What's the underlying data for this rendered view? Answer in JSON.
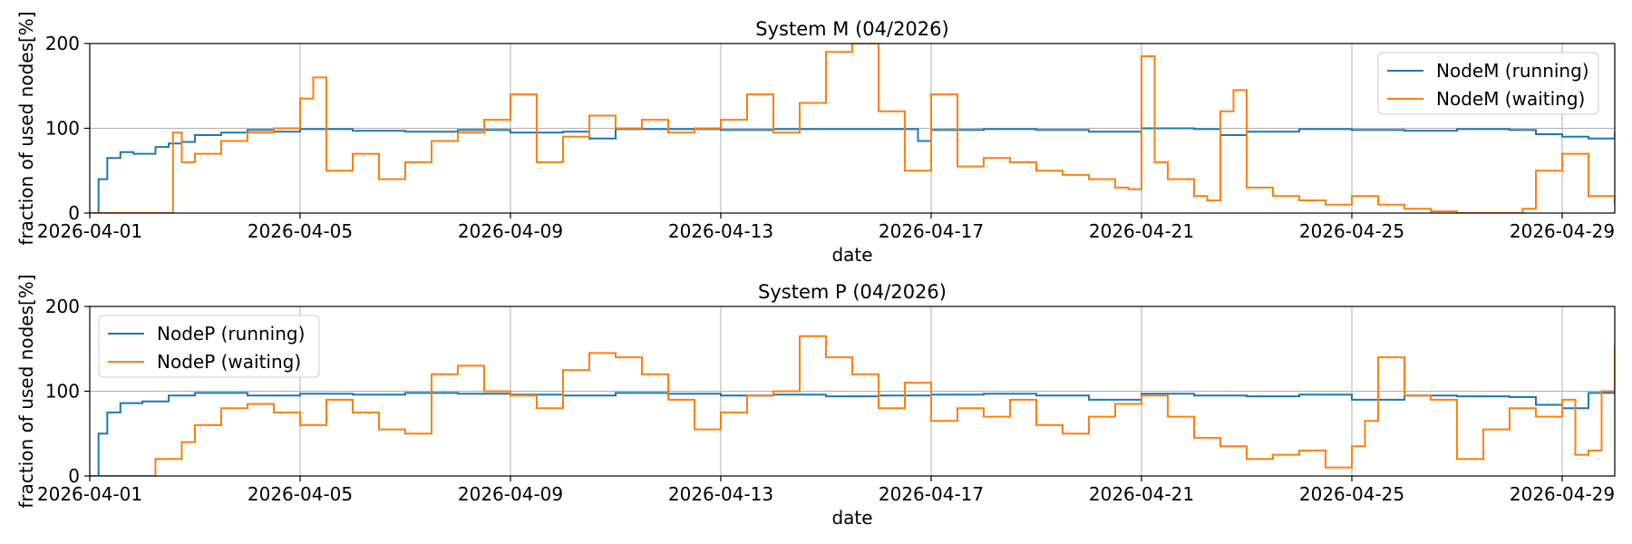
{
  "colors": {
    "running": "#1f77b4",
    "waiting": "#ff7f0e"
  },
  "chart_data": [
    {
      "type": "line",
      "title": "System M (04/2026)",
      "xlabel": "date",
      "ylabel": "fraction of used nodes[%]",
      "ylim": [
        0,
        200
      ],
      "yticks": [
        "0",
        "100",
        "200"
      ],
      "xticks": [
        "2026-04-01",
        "2026-04-05",
        "2026-04-09",
        "2026-04-13",
        "2026-04-17",
        "2026-04-21",
        "2026-04-25",
        "2026-04-29"
      ],
      "grid": true,
      "legend_position": "top-right",
      "series": [
        {
          "name": "NodeM (running)",
          "color": "#1f77b4",
          "x": [
            "2026-04-01 00:00",
            "2026-04-01 04:00",
            "2026-04-01 08:00",
            "2026-04-01 14:00",
            "2026-04-01 20:00",
            "2026-04-02 06:00",
            "2026-04-02 12:00",
            "2026-04-02 18:00",
            "2026-04-03 00:00",
            "2026-04-03 12:00",
            "2026-04-04 00:00",
            "2026-04-04 12:00",
            "2026-04-05 00:00",
            "2026-04-06 00:00",
            "2026-04-07 00:00",
            "2026-04-08 00:00",
            "2026-04-09 00:00",
            "2026-04-10 00:00",
            "2026-04-10 12:00",
            "2026-04-11 00:00",
            "2026-04-12 00:00",
            "2026-04-13 00:00",
            "2026-04-14 00:00",
            "2026-04-15 00:00",
            "2026-04-16 00:00",
            "2026-04-16 18:00",
            "2026-04-17 00:00",
            "2026-04-18 00:00",
            "2026-04-19 00:00",
            "2026-04-20 00:00",
            "2026-04-21 00:00",
            "2026-04-22 00:00",
            "2026-04-22 12:00",
            "2026-04-23 00:00",
            "2026-04-24 00:00",
            "2026-04-25 00:00",
            "2026-04-26 00:00",
            "2026-04-27 00:00",
            "2026-04-28 00:00",
            "2026-04-28 12:00",
            "2026-04-29 00:00",
            "2026-04-29 12:00",
            "2026-04-30 00:00"
          ],
          "values": [
            0,
            40,
            65,
            72,
            70,
            78,
            82,
            84,
            92,
            95,
            98,
            96,
            99,
            97,
            96,
            98,
            95,
            96,
            88,
            99,
            99,
            98,
            99,
            99,
            99,
            85,
            98,
            99,
            98,
            96,
            100,
            99,
            92,
            96,
            99,
            98,
            97,
            99,
            98,
            93,
            90,
            88,
            95
          ]
        },
        {
          "name": "NodeM (waiting)",
          "color": "#ff7f0e",
          "x": [
            "2026-04-01 00:00",
            "2026-04-02 12:00",
            "2026-04-02 14:00",
            "2026-04-02 18:00",
            "2026-04-03 00:00",
            "2026-04-03 12:00",
            "2026-04-04 00:00",
            "2026-04-04 12:00",
            "2026-04-05 00:00",
            "2026-04-05 06:00",
            "2026-04-05 12:00",
            "2026-04-06 00:00",
            "2026-04-06 12:00",
            "2026-04-07 00:00",
            "2026-04-07 12:00",
            "2026-04-08 00:00",
            "2026-04-08 12:00",
            "2026-04-09 00:00",
            "2026-04-09 12:00",
            "2026-04-10 00:00",
            "2026-04-10 12:00",
            "2026-04-11 00:00",
            "2026-04-11 12:00",
            "2026-04-12 00:00",
            "2026-04-12 12:00",
            "2026-04-13 00:00",
            "2026-04-13 12:00",
            "2026-04-14 00:00",
            "2026-04-14 12:00",
            "2026-04-15 00:00",
            "2026-04-15 12:00",
            "2026-04-16 00:00",
            "2026-04-16 12:00",
            "2026-04-17 00:00",
            "2026-04-17 12:00",
            "2026-04-18 00:00",
            "2026-04-18 12:00",
            "2026-04-19 00:00",
            "2026-04-19 12:00",
            "2026-04-20 00:00",
            "2026-04-20 12:00",
            "2026-04-20 18:00",
            "2026-04-21 00:00",
            "2026-04-21 06:00",
            "2026-04-21 12:00",
            "2026-04-22 00:00",
            "2026-04-22 06:00",
            "2026-04-22 12:00",
            "2026-04-22 18:00",
            "2026-04-23 00:00",
            "2026-04-23 12:00",
            "2026-04-24 00:00",
            "2026-04-24 12:00",
            "2026-04-25 00:00",
            "2026-04-25 12:00",
            "2026-04-26 00:00",
            "2026-04-26 12:00",
            "2026-04-27 00:00",
            "2026-04-27 12:00",
            "2026-04-28 00:00",
            "2026-04-28 06:00",
            "2026-04-28 12:00",
            "2026-04-29 00:00",
            "2026-04-29 12:00",
            "2026-04-30 00:00"
          ],
          "values": [
            0,
            0,
            95,
            60,
            70,
            85,
            95,
            100,
            135,
            160,
            50,
            70,
            40,
            60,
            85,
            95,
            110,
            140,
            60,
            90,
            115,
            100,
            110,
            95,
            100,
            110,
            140,
            95,
            130,
            190,
            200,
            120,
            50,
            140,
            55,
            65,
            60,
            50,
            45,
            40,
            30,
            28,
            185,
            60,
            40,
            20,
            15,
            120,
            145,
            30,
            20,
            15,
            10,
            20,
            10,
            5,
            2,
            0,
            0,
            0,
            5,
            50,
            70,
            20,
            10
          ]
        }
      ]
    },
    {
      "type": "line",
      "title": "System P (04/2026)",
      "xlabel": "date",
      "ylabel": "fraction of used nodes[%]",
      "ylim": [
        0,
        200
      ],
      "yticks": [
        "0",
        "100",
        "200"
      ],
      "xticks": [
        "2026-04-01",
        "2026-04-05",
        "2026-04-09",
        "2026-04-13",
        "2026-04-17",
        "2026-04-21",
        "2026-04-25",
        "2026-04-29"
      ],
      "grid": true,
      "legend_position": "top-left",
      "series": [
        {
          "name": "NodeP (running)",
          "color": "#1f77b4",
          "x": [
            "2026-04-01 00:00",
            "2026-04-01 04:00",
            "2026-04-01 08:00",
            "2026-04-01 14:00",
            "2026-04-02 00:00",
            "2026-04-02 12:00",
            "2026-04-03 00:00",
            "2026-04-04 00:00",
            "2026-04-05 00:00",
            "2026-04-06 00:00",
            "2026-04-07 00:00",
            "2026-04-08 00:00",
            "2026-04-09 00:00",
            "2026-04-10 00:00",
            "2026-04-11 00:00",
            "2026-04-12 00:00",
            "2026-04-13 00:00",
            "2026-04-14 00:00",
            "2026-04-15 00:00",
            "2026-04-16 00:00",
            "2026-04-17 00:00",
            "2026-04-18 00:00",
            "2026-04-19 00:00",
            "2026-04-20 00:00",
            "2026-04-21 00:00",
            "2026-04-22 00:00",
            "2026-04-23 00:00",
            "2026-04-24 00:00",
            "2026-04-25 00:00",
            "2026-04-26 00:00",
            "2026-04-27 00:00",
            "2026-04-28 00:00",
            "2026-04-28 12:00",
            "2026-04-29 00:00",
            "2026-04-29 12:00",
            "2026-04-30 00:00"
          ],
          "values": [
            0,
            50,
            75,
            86,
            88,
            95,
            98,
            95,
            97,
            96,
            98,
            97,
            96,
            95,
            98,
            97,
            95,
            96,
            94,
            95,
            96,
            97,
            95,
            90,
            97,
            95,
            94,
            96,
            90,
            95,
            94,
            93,
            84,
            80,
            98,
            99
          ]
        },
        {
          "name": "NodeP (waiting)",
          "color": "#ff7f0e",
          "x": [
            "2026-04-01 00:00",
            "2026-04-01 18:00",
            "2026-04-02 06:00",
            "2026-04-02 18:00",
            "2026-04-03 00:00",
            "2026-04-03 12:00",
            "2026-04-04 00:00",
            "2026-04-04 12:00",
            "2026-04-05 00:00",
            "2026-04-05 12:00",
            "2026-04-06 00:00",
            "2026-04-06 12:00",
            "2026-04-07 00:00",
            "2026-04-07 12:00",
            "2026-04-08 00:00",
            "2026-04-08 12:00",
            "2026-04-09 00:00",
            "2026-04-09 12:00",
            "2026-04-10 00:00",
            "2026-04-10 12:00",
            "2026-04-11 00:00",
            "2026-04-11 12:00",
            "2026-04-12 00:00",
            "2026-04-12 12:00",
            "2026-04-13 00:00",
            "2026-04-13 12:00",
            "2026-04-14 00:00",
            "2026-04-14 12:00",
            "2026-04-15 00:00",
            "2026-04-15 12:00",
            "2026-04-16 00:00",
            "2026-04-16 12:00",
            "2026-04-17 00:00",
            "2026-04-17 12:00",
            "2026-04-18 00:00",
            "2026-04-18 12:00",
            "2026-04-19 00:00",
            "2026-04-19 12:00",
            "2026-04-20 00:00",
            "2026-04-20 12:00",
            "2026-04-21 00:00",
            "2026-04-21 12:00",
            "2026-04-22 00:00",
            "2026-04-22 12:00",
            "2026-04-23 00:00",
            "2026-04-23 12:00",
            "2026-04-24 00:00",
            "2026-04-24 12:00",
            "2026-04-25 00:00",
            "2026-04-25 06:00",
            "2026-04-25 12:00",
            "2026-04-26 00:00",
            "2026-04-26 12:00",
            "2026-04-27 00:00",
            "2026-04-27 12:00",
            "2026-04-28 00:00",
            "2026-04-28 12:00",
            "2026-04-29 00:00",
            "2026-04-29 06:00",
            "2026-04-29 12:00",
            "2026-04-29 18:00",
            "2026-04-30 00:00"
          ],
          "values": [
            0,
            0,
            20,
            40,
            60,
            80,
            85,
            75,
            60,
            90,
            75,
            55,
            50,
            120,
            130,
            100,
            95,
            80,
            125,
            145,
            140,
            120,
            90,
            55,
            75,
            95,
            100,
            165,
            140,
            120,
            80,
            110,
            65,
            80,
            70,
            90,
            60,
            50,
            70,
            85,
            95,
            70,
            45,
            35,
            20,
            25,
            30,
            10,
            35,
            65,
            140,
            95,
            90,
            20,
            55,
            80,
            70,
            90,
            25,
            30,
            100,
            155
          ]
        }
      ]
    }
  ]
}
